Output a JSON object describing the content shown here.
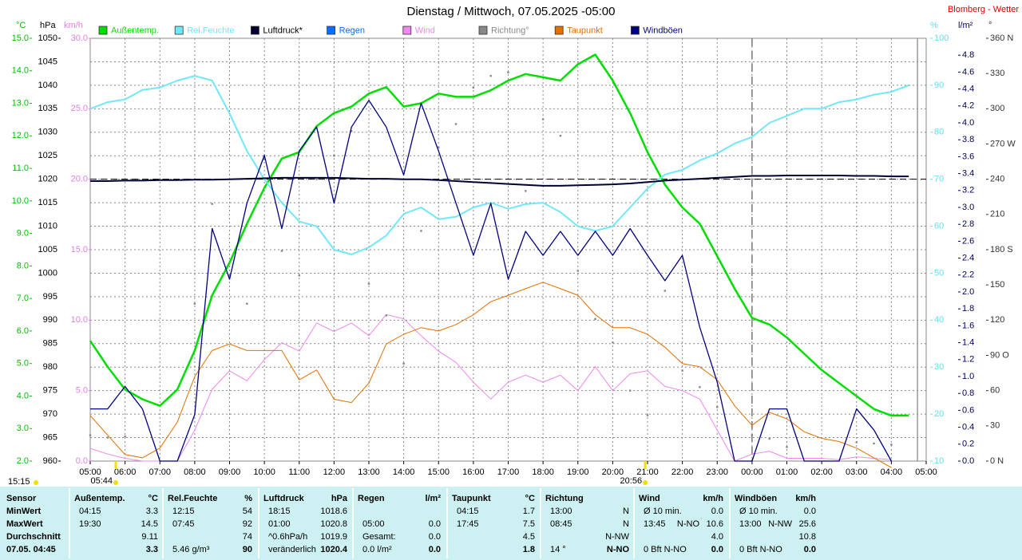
{
  "chart_data": {
    "type": "line",
    "title": "Dienstag / Mittwoch, 07.05.2025  -05:00",
    "station": "Blomberg - Wetter",
    "grid": true,
    "x": [
      0,
      0.5,
      1,
      1.5,
      2,
      2.5,
      3,
      3.5,
      4,
      4.5,
      5,
      5.5,
      6,
      6.5,
      7,
      7.5,
      8,
      8.5,
      9,
      9.5,
      10,
      10.5,
      11,
      11.5,
      12,
      12.5,
      13,
      13.5,
      14,
      14.5,
      15,
      15.5,
      16,
      16.5,
      17,
      17.5,
      18,
      18.5,
      19,
      19.5,
      20,
      20.5,
      21,
      21.5,
      22,
      22.5,
      23,
      23.5,
      24
    ],
    "xlim": [
      0,
      24
    ],
    "xticks": [
      {
        "value": 0,
        "label": "05:00"
      },
      {
        "value": 1,
        "label": "06:00"
      },
      {
        "value": 2,
        "label": "07:00"
      },
      {
        "value": 3,
        "label": "08:00"
      },
      {
        "value": 4,
        "label": "09:00"
      },
      {
        "value": 5,
        "label": "10:00"
      },
      {
        "value": 6,
        "label": "11:00"
      },
      {
        "value": 7,
        "label": "12:00"
      },
      {
        "value": 8,
        "label": "13:00"
      },
      {
        "value": 9,
        "label": "14:00"
      },
      {
        "value": 10,
        "label": "15:00"
      },
      {
        "value": 11,
        "label": "16:00"
      },
      {
        "value": 12,
        "label": "17:00"
      },
      {
        "value": 13,
        "label": "18:00"
      },
      {
        "value": 14,
        "label": "19:00"
      },
      {
        "value": 15,
        "label": "20:00"
      },
      {
        "value": 16,
        "label": "21:00"
      },
      {
        "value": 17,
        "label": "22:00"
      },
      {
        "value": 18,
        "label": "23:00"
      },
      {
        "value": 19,
        "label": "00:00"
      },
      {
        "value": 20,
        "label": "01:00"
      },
      {
        "value": 21,
        "label": "02:00"
      },
      {
        "value": 22,
        "label": "03:00"
      },
      {
        "value": 23,
        "label": "04:00"
      },
      {
        "value": 24,
        "label": "05:00"
      }
    ],
    "day_line": 19,
    "now_line": 23.75,
    "reference_line": 1020,
    "sun": {
      "daylength": "15:15",
      "sunrise": "05:44",
      "sunset": "20:56"
    },
    "axes": [
      {
        "id": "temp",
        "unit": "°C",
        "color": "#00c000",
        "lim": [
          2,
          15
        ],
        "ticks": [
          {
            "value": 2,
            "label": "2.0"
          },
          {
            "value": 3,
            "label": "3.0"
          },
          {
            "value": 4,
            "label": "4.0"
          },
          {
            "value": 5,
            "label": "5.0"
          },
          {
            "value": 6,
            "label": "6.0"
          },
          {
            "value": 7,
            "label": "7.0"
          },
          {
            "value": 8,
            "label": "8.0"
          },
          {
            "value": 9,
            "label": "9.0"
          },
          {
            "value": 10,
            "label": "10.0"
          },
          {
            "value": 11,
            "label": "11.0"
          },
          {
            "value": 12,
            "label": "12.0"
          },
          {
            "value": 13,
            "label": "13.0"
          },
          {
            "value": 14,
            "label": "14.0"
          },
          {
            "value": 15,
            "label": "15.0"
          }
        ]
      },
      {
        "id": "press",
        "unit": "hPa",
        "color": "#000000",
        "lim": [
          960,
          1050
        ],
        "ticks": [
          960,
          965,
          970,
          975,
          980,
          985,
          990,
          995,
          1000,
          1005,
          1010,
          1015,
          1020,
          1025,
          1030,
          1035,
          1040,
          1045,
          1050
        ]
      },
      {
        "id": "wind",
        "unit": "km/h",
        "color": "#e080e0",
        "lim": [
          0,
          30
        ],
        "ticks": [
          {
            "value": 0,
            "label": "0.0"
          },
          {
            "value": 5,
            "label": "5.0"
          },
          {
            "value": 10,
            "label": "10.0"
          },
          {
            "value": 15,
            "label": "15.0"
          },
          {
            "value": 20,
            "label": "20.0"
          },
          {
            "value": 25,
            "label": "25.0"
          },
          {
            "value": 30,
            "label": "30.0"
          }
        ]
      },
      {
        "id": "hum",
        "unit": "%",
        "color": "#60e0f0",
        "lim": [
          10,
          100
        ],
        "ticks": [
          10,
          20,
          30,
          40,
          50,
          60,
          70,
          80,
          90,
          100
        ]
      },
      {
        "id": "rain",
        "unit": "l/m²",
        "color": "#000060",
        "lim": [
          0,
          5
        ],
        "ticks": [
          {
            "value": 0,
            "label": "0.0"
          },
          0.2,
          0.4,
          0.6,
          0.8,
          {
            "value": 1,
            "label": "1.0"
          },
          1.2,
          1.4,
          1.6,
          1.8,
          {
            "value": 2,
            "label": "2.0"
          },
          2.2,
          2.4,
          2.6,
          2.8,
          {
            "value": 3,
            "label": "3.0"
          },
          3.2,
          3.4,
          3.6,
          3.8,
          {
            "value": 4,
            "label": "4.0"
          },
          4.2,
          4.4,
          4.6,
          4.8
        ]
      },
      {
        "id": "dir",
        "unit": "°",
        "color": "#333333",
        "lim": [
          0,
          360
        ],
        "ticks": [
          {
            "value": 0,
            "label": "0 N"
          },
          30,
          60,
          {
            "value": 90,
            "label": "90 O"
          },
          120,
          150,
          {
            "value": 180,
            "label": "180 S"
          },
          210,
          240,
          {
            "value": 270,
            "label": "270 W"
          },
          300,
          330,
          {
            "value": 360,
            "label": "360 N"
          }
        ]
      }
    ],
    "series": [
      {
        "name": "Außentemp.",
        "color": "#00dd00",
        "axis": "temp",
        "width": 2.5,
        "values": [
          5.7,
          4.9,
          4.2,
          3.9,
          3.7,
          4.2,
          5.4,
          7.1,
          8.1,
          9.3,
          10.4,
          11.3,
          11.5,
          12.3,
          12.7,
          12.9,
          13.3,
          13.5,
          12.9,
          13.0,
          13.3,
          13.2,
          13.2,
          13.4,
          13.7,
          13.9,
          13.8,
          13.7,
          14.2,
          14.5,
          13.7,
          12.7,
          11.5,
          10.5,
          9.8,
          9.3,
          8.3,
          7.3,
          6.4,
          6.2,
          5.8,
          5.3,
          4.8,
          4.4,
          4.0,
          3.6,
          3.4,
          3.4,
          null
        ]
      },
      {
        "name": "Rel.Feuchte",
        "color": "#70e8f8",
        "axis": "hum",
        "width": 2,
        "values": [
          85,
          86.4,
          87,
          89,
          89.5,
          91,
          92,
          91,
          84,
          76,
          70,
          65,
          61,
          60,
          55,
          54,
          55.5,
          58,
          62.6,
          64,
          61.5,
          62,
          64,
          65,
          63.7,
          64.7,
          65,
          63,
          60,
          59,
          60,
          64,
          68,
          71,
          72,
          74,
          75.5,
          77.6,
          79,
          82,
          83.5,
          85,
          85,
          86.4,
          87,
          88,
          88.6,
          90,
          null
        ]
      },
      {
        "name": "Luftdruck*",
        "color": "#000030",
        "axis": "press",
        "width": 2,
        "values": [
          1019.6,
          1019.6,
          1019.7,
          1019.7,
          1019.8,
          1019.8,
          1019.9,
          1019.9,
          1020.0,
          1020.1,
          1020.2,
          1020.3,
          1020.3,
          1020.3,
          1020.3,
          1020.2,
          1020.1,
          1020.1,
          1020.0,
          1020.0,
          1019.8,
          1019.6,
          1019.4,
          1019.2,
          1019.0,
          1018.8,
          1018.6,
          1018.6,
          1018.7,
          1018.8,
          1018.9,
          1019.1,
          1019.4,
          1019.7,
          1019.9,
          1020.1,
          1020.3,
          1020.5,
          1020.7,
          1020.7,
          1020.8,
          1020.8,
          1020.8,
          1020.8,
          1020.7,
          1020.7,
          1020.6,
          1020.6,
          null
        ]
      },
      {
        "name": "Regen",
        "color": "#0070ff",
        "axis": "rain",
        "marker": "bar",
        "values": [
          0,
          0,
          0,
          0,
          0,
          0,
          0,
          0,
          0,
          0,
          0,
          0,
          0,
          0,
          0,
          0,
          0,
          0,
          0,
          0,
          0,
          0,
          0,
          0,
          0,
          0,
          0,
          0,
          0,
          0,
          0,
          0,
          0,
          0,
          0,
          0,
          0,
          0,
          0,
          0,
          0,
          0,
          0,
          0,
          0,
          0,
          0,
          0,
          null
        ]
      },
      {
        "name": "Wind",
        "color": "#ee88ee",
        "axis": "wind",
        "width": 1,
        "values": [
          0.9,
          0.5,
          0.2,
          0,
          0,
          0,
          2.2,
          5.1,
          6.4,
          5.7,
          7.2,
          8.4,
          7.8,
          9.8,
          9.2,
          9.8,
          8.9,
          10.4,
          10.1,
          8.9,
          7.8,
          7.0,
          5.6,
          4.4,
          5.6,
          6.1,
          5.6,
          6.1,
          5.0,
          6.7,
          5.0,
          6.2,
          6.4,
          5.3,
          5.0,
          4.4,
          2.2,
          0,
          0.5,
          0.7,
          0.2,
          0.2,
          0.2,
          0.1,
          0.3,
          0.2,
          0.1,
          null,
          null
        ]
      },
      {
        "name": "Richtung°",
        "color": "#888888",
        "axis": "dir",
        "marker": "dot",
        "values": [
          22,
          20,
          21,
          null,
          null,
          null,
          134,
          219,
          158,
          134,
          257,
          179,
          158,
          240,
          260,
          281,
          151,
          124,
          83,
          196,
          267,
          287,
          318,
          328,
          331,
          230,
          291,
          277,
          162,
          121,
          101,
          60,
          39,
          145,
          77,
          63,
          46,
          null,
          22,
          19,
          12,
          null,
          null,
          null,
          16,
          15,
          14,
          null,
          null
        ]
      },
      {
        "name": "Taupunkt",
        "color": "#e07000",
        "axis": "temp",
        "width": 1,
        "values": [
          3.4,
          2.8,
          2.2,
          2.1,
          2.4,
          3.2,
          4.6,
          5.4,
          5.6,
          5.4,
          5.4,
          5.4,
          4.5,
          4.8,
          3.9,
          3.8,
          4.4,
          5.6,
          5.9,
          6.1,
          6.0,
          6.2,
          6.5,
          6.9,
          7.1,
          7.3,
          7.5,
          7.3,
          7.1,
          6.5,
          6.1,
          6.1,
          5.9,
          5.5,
          5.0,
          4.9,
          4.5,
          3.7,
          3.1,
          3.5,
          3.3,
          2.9,
          2.7,
          2.6,
          2.4,
          2.1,
          1.8,
          null,
          null
        ]
      },
      {
        "name": "Windböen",
        "color": "#000080",
        "axis": "wind",
        "width": 1.3,
        "values": [
          3.7,
          3.7,
          5.3,
          3.7,
          0,
          0,
          3.3,
          16.5,
          12.9,
          18.3,
          21.7,
          16.5,
          22.0,
          23.7,
          18.3,
          23.7,
          25.6,
          23.7,
          20.3,
          25.4,
          22.0,
          18.3,
          14.6,
          18.3,
          12.9,
          16.3,
          14.6,
          16.3,
          14.6,
          16.3,
          14.6,
          16.5,
          14.6,
          12.8,
          14.6,
          9.5,
          5.6,
          0,
          0,
          3.7,
          3.7,
          0,
          0,
          0,
          3.7,
          2.2,
          0,
          null,
          null
        ]
      }
    ]
  },
  "table": {
    "row_labels": [
      "Sensor",
      "MinWert",
      "MaxWert",
      "Durchschnitt",
      "07.05. 04:45"
    ],
    "panels": [
      {
        "name": "Außentemp.",
        "unit": "°C",
        "rows": [
          [
            "04:15",
            "3.3"
          ],
          [
            "19:30",
            "14.5"
          ],
          [
            "9.11"
          ],
          [
            "3.3"
          ]
        ]
      },
      {
        "name": "Rel.Feuchte",
        "unit": "%",
        "rows": [
          [
            "12:15",
            "54"
          ],
          [
            "07:45",
            "92"
          ],
          [
            "74"
          ],
          [
            "5.46 g/m³",
            "90"
          ]
        ]
      },
      {
        "name": "Luftdruck",
        "unit": "hPa",
        "rows": [
          [
            "18:15",
            "1018.6"
          ],
          [
            "01:00",
            "1020.8"
          ],
          [
            "^0.6hPa/h",
            "1019.9"
          ],
          [
            "veränderlich",
            "1020.4"
          ]
        ]
      },
      {
        "name": "Regen",
        "unit": "l/m²",
        "rows": [
          [],
          [
            "05:00",
            "0.0"
          ],
          [
            "Gesamt:",
            "0.0"
          ],
          [
            "0.0 l/m²",
            "0.0"
          ]
        ]
      },
      {
        "name": "Taupunkt",
        "unit": "°C",
        "rows": [
          [
            "04:15",
            "1.7"
          ],
          [
            "17:45",
            "7.5"
          ],
          [
            "4.5"
          ],
          [
            "1.8"
          ]
        ]
      },
      {
        "name": "Richtung",
        "rows": [
          [
            "13:00",
            "N"
          ],
          [
            "08:45",
            "N"
          ],
          [
            "N-NW"
          ],
          [
            "14 °",
            "N-NO"
          ]
        ]
      },
      {
        "name": "Wind",
        "unit": "km/h",
        "rows": [
          [
            "Ø 10 min.",
            "0.0"
          ],
          [
            "13:45",
            "N-NO",
            "10.6"
          ],
          [
            "4.0"
          ],
          [
            "0 Bft N-NO",
            "0.0"
          ]
        ]
      },
      {
        "name": "Windböen",
        "unit": "km/h",
        "rows": [
          [
            "Ø 10 min.",
            "0.0"
          ],
          [
            "13:00",
            "N-NW",
            "25.6"
          ],
          [
            "10.8"
          ],
          [
            "0 Bft N-NO",
            "0.0"
          ]
        ]
      }
    ]
  }
}
